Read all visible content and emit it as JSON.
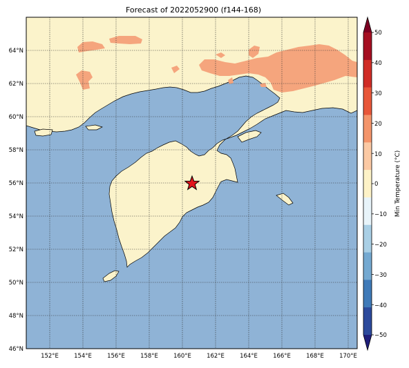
{
  "title": "Forecast of 2022052900 (f144-168)",
  "map": {
    "lat_ticks": [
      "46°N",
      "48°N",
      "50°N",
      "52°N",
      "54°N",
      "56°N",
      "58°N",
      "60°N",
      "62°N",
      "64°N"
    ],
    "lon_ticks": [
      "152°E",
      "154°E",
      "156°E",
      "158°E",
      "160°E",
      "162°E",
      "164°E",
      "166°E",
      "168°E",
      "170°E"
    ],
    "extent": {
      "lon": [
        150.5,
        170.5
      ],
      "lat": [
        46,
        66
      ]
    },
    "marker": {
      "name": "star-marker",
      "lon": 160.6,
      "lat": 56.0
    },
    "colors": {
      "ocean": "#8fb3d6",
      "land": "#fbf3cb",
      "warm": "#f5a57d",
      "marker": "#e0141c"
    }
  },
  "colorbar": {
    "label": "Min Temperature (°C)",
    "ticks": [
      "50",
      "40",
      "30",
      "20",
      "10",
      "0",
      "−10",
      "−20",
      "−30",
      "−40",
      "−50"
    ],
    "segments": [
      "#7c0022",
      "#a50f22",
      "#d02d27",
      "#e8573a",
      "#f4956b",
      "#fbc9a4",
      "#fdf2c7",
      "#e8f4fa",
      "#a9cfe5",
      "#74a9d1",
      "#3f7ab8",
      "#2c4a9c",
      "#1f1e7a"
    ]
  },
  "chart_data": {
    "type": "map",
    "variable": "Min Temperature (°C)",
    "marker": {
      "lon": 160.6,
      "lat": 56.0
    },
    "colorbar_range": [
      -50,
      50
    ]
  }
}
